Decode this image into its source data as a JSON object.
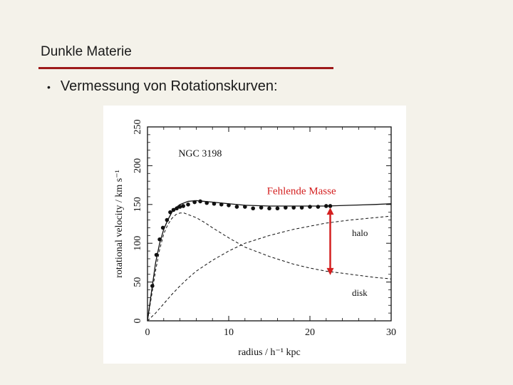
{
  "slide": {
    "title": "Dunkle Materie",
    "bullet": "Vermessung von Rotationskurven:",
    "accent_color": "#9e1a1a"
  },
  "chart_data": {
    "type": "line",
    "title": "NGC 3198",
    "xlabel": "radius / h⁻¹ kpc",
    "ylabel": "rotational velocity / km s⁻¹",
    "xlim": [
      0,
      30
    ],
    "ylim": [
      0,
      250
    ],
    "xticks": [
      0,
      10,
      20,
      30
    ],
    "yticks": [
      0,
      50,
      100,
      150,
      200,
      250
    ],
    "grid": false,
    "annotation": {
      "text": "Fehlende Masse",
      "color": "#d42020",
      "arrow_x": 22.5,
      "arrow_from": 147,
      "arrow_to": 58
    },
    "observed": {
      "x": [
        0.6,
        1.1,
        1.5,
        1.9,
        2.4,
        2.8,
        3.2,
        3.6,
        4.0,
        4.4,
        5.0,
        5.8,
        6.5,
        7.3,
        8.2,
        9.1,
        10.0,
        11.0,
        12.0,
        13.0,
        14.0,
        15.0,
        16.0,
        17.0,
        18.0,
        19.0,
        20.0,
        21.0,
        22.0,
        22.5
      ],
      "y": [
        45,
        85,
        105,
        120,
        130,
        140,
        143,
        145,
        147,
        148,
        150,
        153,
        154,
        152,
        151,
        150,
        149,
        147,
        147,
        145,
        146,
        145,
        145,
        146,
        146,
        146,
        147,
        147,
        148,
        148
      ]
    },
    "series": [
      {
        "name": "total",
        "style": "solid",
        "x": [
          0,
          0.5,
          1,
          1.5,
          2,
          2.5,
          3,
          3.5,
          4,
          5,
          6,
          7,
          8,
          10,
          12,
          15,
          18,
          20,
          22,
          25,
          28,
          30
        ],
        "y": [
          0,
          38,
          75,
          100,
          118,
          130,
          140,
          146,
          150,
          154,
          155,
          154,
          153,
          151,
          149,
          148,
          148,
          148,
          148,
          149,
          150,
          151
        ]
      },
      {
        "name": "halo",
        "label": "halo",
        "style": "dashed",
        "x": [
          0,
          1,
          2,
          3,
          4,
          5,
          6,
          8,
          10,
          12,
          15,
          18,
          20,
          22,
          25,
          28,
          30
        ],
        "y": [
          0,
          10,
          22,
          34,
          45,
          55,
          64,
          78,
          90,
          100,
          110,
          118,
          122,
          126,
          130,
          133,
          135
        ]
      },
      {
        "name": "disk",
        "label": "disk",
        "style": "dashed",
        "x": [
          0,
          0.5,
          1,
          1.5,
          2,
          2.5,
          3,
          3.5,
          4,
          4.5,
          5,
          6,
          7,
          8,
          10,
          12,
          15,
          18,
          20,
          22,
          25,
          28,
          30
        ],
        "y": [
          0,
          32,
          65,
          92,
          112,
          124,
          132,
          137,
          139,
          139,
          137,
          133,
          127,
          120,
          107,
          95,
          83,
          73,
          68,
          64,
          60,
          56,
          54
        ]
      }
    ]
  }
}
